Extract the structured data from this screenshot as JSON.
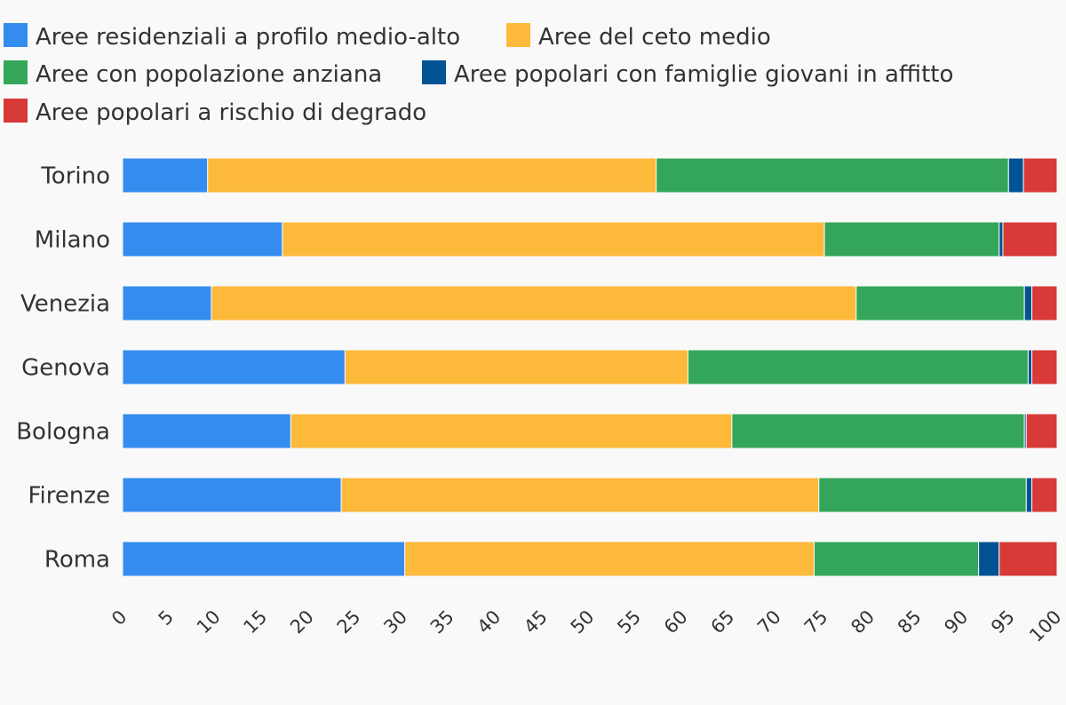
{
  "chart_data": {
    "type": "bar",
    "orientation": "horizontal",
    "stacked": true,
    "title": "",
    "xlabel": "",
    "ylabel": "",
    "xlim": [
      0,
      100
    ],
    "x_ticks": [
      "0",
      "5",
      "10",
      "15",
      "20",
      "25",
      "30",
      "35",
      "40",
      "45",
      "50",
      "55",
      "60",
      "65",
      "70",
      "75",
      "80",
      "85",
      "90",
      "95",
      "100"
    ],
    "grid": false,
    "legend_position": "top-left",
    "categories": [
      "Torino",
      "Milano",
      "Venezia",
      "Genova",
      "Bologna",
      "Firenze",
      "Roma"
    ],
    "series": [
      {
        "name": "Aree residenziali a profilo medio-alto",
        "color": "#348cef",
        "values": [
          9.1,
          17.1,
          9.5,
          23.8,
          18.0,
          23.4,
          30.2
        ]
      },
      {
        "name": "Aree del ceto medio",
        "color": "#fdb93a",
        "values": [
          48.0,
          58.0,
          69.0,
          36.7,
          47.2,
          51.1,
          43.8
        ]
      },
      {
        "name": "Aree con popolazione anziana",
        "color": "#34a65a",
        "values": [
          37.7,
          18.7,
          18.0,
          36.4,
          31.3,
          22.2,
          17.6
        ]
      },
      {
        "name": "Aree popolari con famiglie giovani in affitto",
        "color": "#015393",
        "values": [
          1.6,
          0.4,
          0.8,
          0.4,
          0.2,
          0.6,
          2.2
        ]
      },
      {
        "name": "Aree popolari a rischio di degrado",
        "color": "#d73a37",
        "values": [
          3.6,
          5.8,
          2.7,
          2.7,
          3.3,
          2.7,
          6.2
        ]
      }
    ]
  }
}
